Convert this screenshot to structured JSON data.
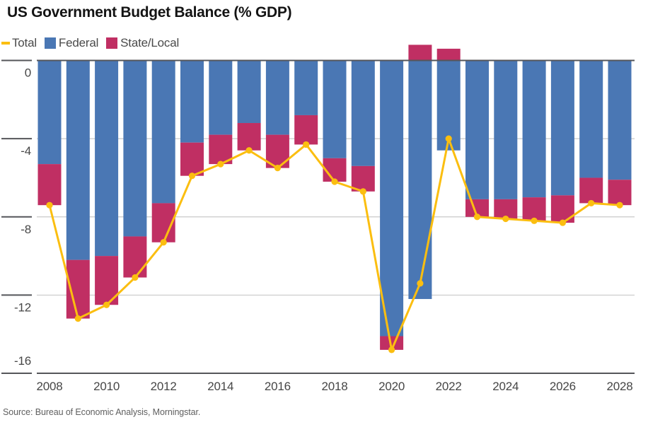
{
  "title": "US Government Budget Balance (% GDP)",
  "legend": {
    "items": [
      {
        "label": "Total",
        "marker": "line-dash-icon",
        "color": "#FBBE10"
      },
      {
        "label": "Federal",
        "marker": "square-icon",
        "color": "#4A77B4"
      },
      {
        "label": "State/Local",
        "marker": "square-icon",
        "color": "#C02F63"
      }
    ]
  },
  "source": "Source: Bureau of Economic Analysis, Morningstar.",
  "colors": {
    "federal_bar": "#4A77B4",
    "state_local_bar": "#C02F63",
    "total_line": "#FBBE10",
    "grid_light": "#C9C9C9",
    "axis_dark": "#55565A",
    "axis_text": "#464646"
  },
  "chart_data": {
    "type": "bar",
    "subtype": "stacked-bars-with-line-overlay",
    "title": "US Government Budget Balance (% GDP)",
    "xlabel": "",
    "ylabel": "% GDP",
    "categories": [
      2008,
      2009,
      2010,
      2011,
      2012,
      2013,
      2014,
      2015,
      2016,
      2017,
      2018,
      2019,
      2020,
      2021,
      2022,
      2023,
      2024,
      2025,
      2026,
      2027,
      2028
    ],
    "series": [
      {
        "name": "Federal",
        "type": "bar",
        "color": "#4A77B4",
        "values": [
          -5.3,
          -10.2,
          -10.0,
          -9.0,
          -7.3,
          -4.2,
          -3.8,
          -3.2,
          -3.8,
          -2.8,
          -5.0,
          -5.4,
          -14.1,
          -12.2,
          -4.6,
          -7.1,
          -7.1,
          -7.0,
          -6.9,
          -6.0,
          -6.1
        ]
      },
      {
        "name": "State/Local",
        "type": "bar",
        "color": "#C02F63",
        "values": [
          -2.1,
          -3.0,
          -2.5,
          -2.1,
          -2.0,
          -1.7,
          -1.5,
          -1.4,
          -1.7,
          -1.5,
          -1.2,
          -1.3,
          -0.7,
          0.8,
          0.6,
          -0.9,
          -1.0,
          -1.2,
          -1.4,
          -1.3,
          -1.3
        ]
      },
      {
        "name": "Total",
        "type": "line",
        "color": "#FBBE10",
        "values": [
          -7.4,
          -13.2,
          -12.5,
          -11.1,
          -9.3,
          -5.9,
          -5.3,
          -4.6,
          -5.5,
          -4.3,
          -6.2,
          -6.7,
          -14.8,
          -11.4,
          -4.0,
          -8.0,
          -8.1,
          -8.2,
          -8.3,
          -7.3,
          -7.4
        ]
      }
    ],
    "yticks": [
      0,
      -4,
      -8,
      -12,
      -16
    ],
    "xticks": [
      2008,
      2010,
      2012,
      2014,
      2016,
      2018,
      2020,
      2022,
      2024,
      2026,
      2028
    ],
    "ylim": [
      -16,
      1.5
    ],
    "grid": "horizontal",
    "legend_position": "top-left"
  }
}
